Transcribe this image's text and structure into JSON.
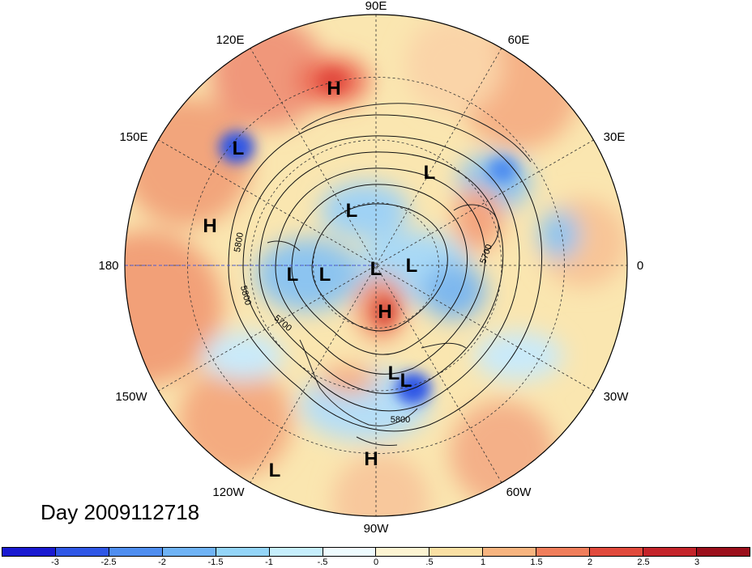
{
  "date_label": "Day 2009112718",
  "longitude_labels": {
    "lon_90e": "90E",
    "lon_60e": "60E",
    "lon_30e": "30E",
    "lon_0": "0",
    "lon_30w": "30W",
    "lon_60w": "60W",
    "lon_90w": "90W",
    "lon_120w": "120W",
    "lon_150w": "150W",
    "lon_180": "180",
    "lon_150e": "150E",
    "lon_120e": "120E"
  },
  "pressure_centers": [
    {
      "type": "H",
      "label": "H",
      "region": "central-siberia"
    },
    {
      "type": "L",
      "label": "L",
      "region": "sea-of-okhotsk"
    },
    {
      "type": "H",
      "label": "H",
      "region": "north-pacific"
    },
    {
      "type": "L",
      "label": "L",
      "region": "east-siberian-sea"
    },
    {
      "type": "L",
      "label": "L",
      "region": "barents-sea"
    },
    {
      "type": "L",
      "label": "L",
      "region": "bering-strait"
    },
    {
      "type": "L",
      "label": "L",
      "region": "beaufort-sea"
    },
    {
      "type": "L",
      "label": "L",
      "region": "arctic-ocean"
    },
    {
      "type": "L",
      "label": "L",
      "region": "greenland-sea"
    },
    {
      "type": "H",
      "label": "H",
      "region": "canadian-arctic"
    },
    {
      "type": "L",
      "label": "L",
      "region": "great-lakes"
    },
    {
      "type": "L",
      "label": "L",
      "region": "north-atlantic-coast"
    },
    {
      "type": "H",
      "label": "H",
      "region": "gulf-of-mexico"
    },
    {
      "type": "L",
      "label": "L",
      "region": "east-pacific"
    }
  ],
  "contour_labels": [
    "5800",
    "5800",
    "5700",
    "5700",
    "5800"
  ],
  "colorbar": {
    "tick_labels": [
      "-3",
      "-2.5",
      "-2",
      "-1.5",
      "-1",
      "-.5",
      "0",
      ".5",
      "1",
      "1.5",
      "2",
      "2.5",
      "3"
    ],
    "colors": [
      "#1a1ad1",
      "#2f57e6",
      "#4f8ef0",
      "#6fb3f5",
      "#94d5f8",
      "#c6eefc",
      "#eefbfe",
      "#fdf4d2",
      "#fae0a4",
      "#f7b47f",
      "#f07e5b",
      "#e14a3c",
      "#c4242a",
      "#9b0f1b"
    ]
  }
}
